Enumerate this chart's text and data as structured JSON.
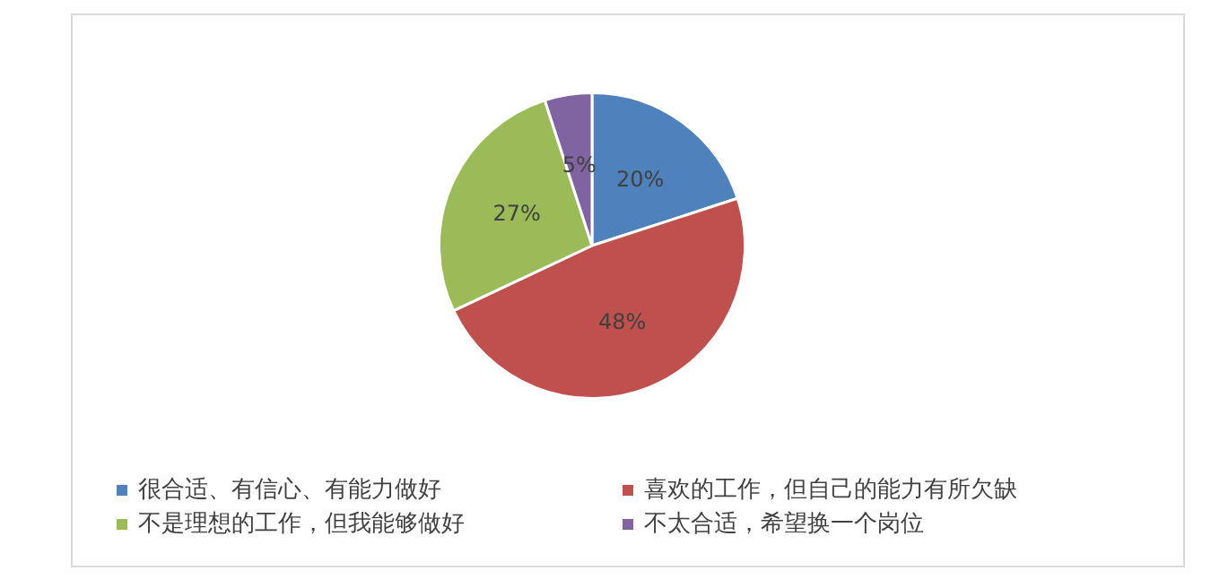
{
  "chart_data": {
    "type": "pie",
    "categories": [
      "很合适、有信心、有能力做好",
      "喜欢的工作，但自己的能力有所欠缺",
      "不是理想的工作，但我能够做好",
      "不太合适，希望换一个岗位"
    ],
    "values": [
      20,
      48,
      27,
      5
    ],
    "colors": [
      "#4f81bd",
      "#c0504d",
      "#9bbb59",
      "#8064a2"
    ],
    "value_labels": [
      "20%",
      "48%",
      "27%",
      "5%"
    ],
    "legend": "bottom"
  }
}
